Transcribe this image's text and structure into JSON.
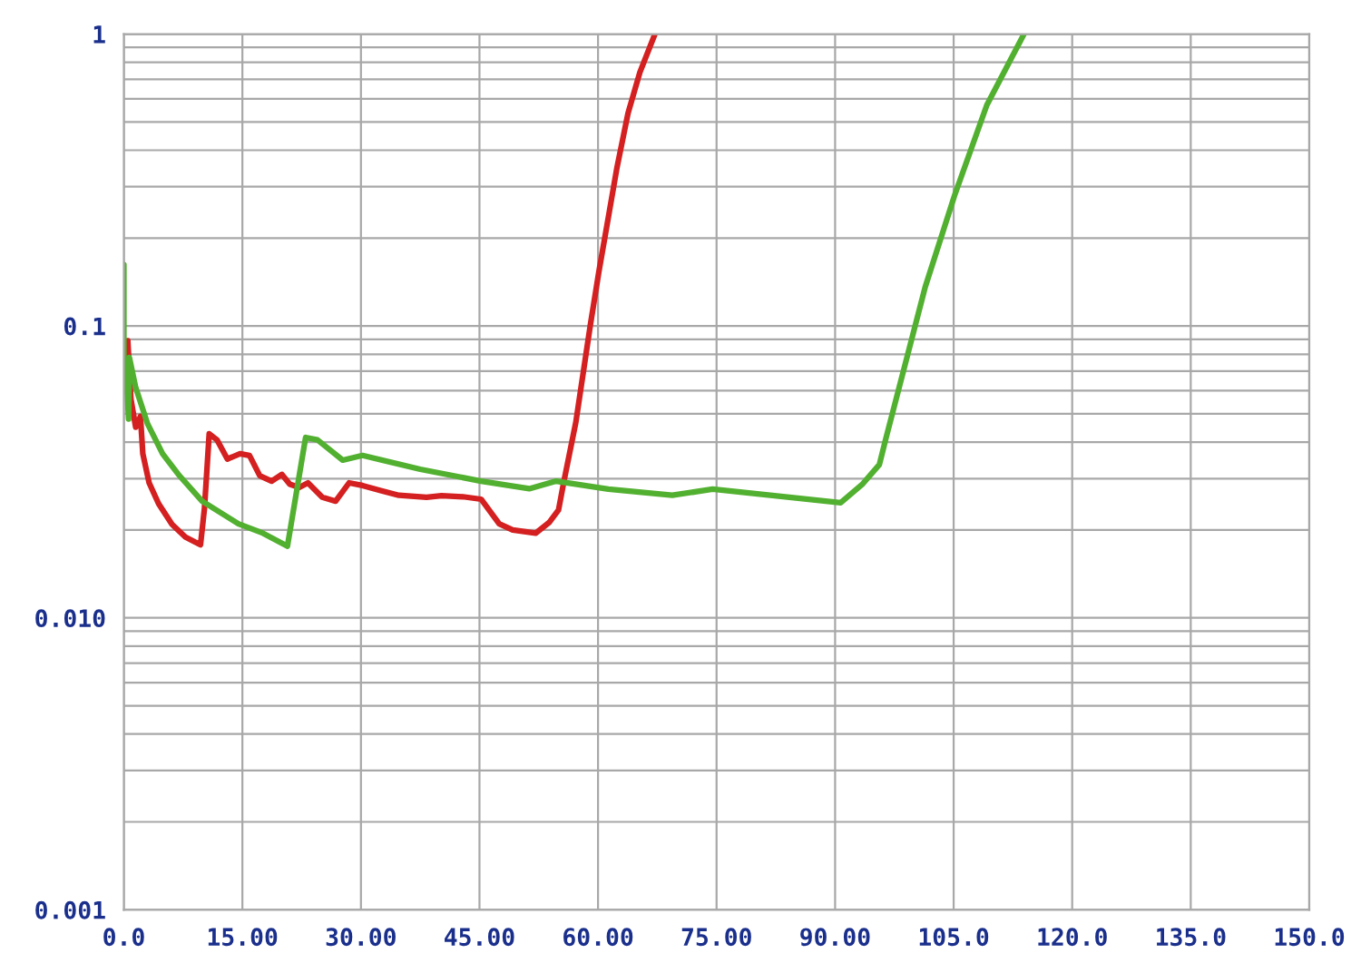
{
  "chart_data": {
    "type": "line",
    "log": "y",
    "grid": true,
    "line_style": "solid",
    "xlim": [
      0,
      150
    ],
    "ylim": [
      0.001,
      1
    ],
    "xticks": [
      {
        "value": 0,
        "label": "0.0"
      },
      {
        "value": 15,
        "label": "15.00"
      },
      {
        "value": 30,
        "label": "30.00"
      },
      {
        "value": 45,
        "label": "45.00"
      },
      {
        "value": 60,
        "label": "60.00"
      },
      {
        "value": 75,
        "label": "75.00"
      },
      {
        "value": 90,
        "label": "90.00"
      },
      {
        "value": 105,
        "label": "105.0"
      },
      {
        "value": 120,
        "label": "120.0"
      },
      {
        "value": 135,
        "label": "135.0"
      },
      {
        "value": 150,
        "label": "150.0"
      }
    ],
    "yticks": [
      {
        "value": 0.001,
        "label": "0.001"
      },
      {
        "value": 0.01,
        "label": "0.010"
      },
      0.1,
      1
    ],
    "series": [
      {
        "color": "#d42020",
        "x": [
          0.5,
          0.9,
          1.5,
          2.1,
          2.4,
          3.2,
          4.4,
          6.1,
          7.8,
          9.7,
          10.2,
          10.8,
          11.8,
          13.1,
          14.7,
          15.9,
          17.2,
          18.7,
          20.0,
          21.0,
          22.2,
          23.3,
          25.1,
          26.8,
          28.5,
          30.2,
          32.5,
          34.8,
          38.3,
          40.2,
          42.9,
          45.2,
          47.5,
          49.2,
          52.1,
          53.8,
          55.0,
          55.7,
          57.2,
          59.0,
          60.1,
          61.3,
          62.4,
          63.8,
          65.3,
          67.2
        ],
        "values": [
          0.089,
          0.056,
          0.045,
          0.049,
          0.0365,
          0.029,
          0.0246,
          0.0209,
          0.0189,
          0.0178,
          0.0237,
          0.0427,
          0.0407,
          0.035,
          0.0365,
          0.036,
          0.0307,
          0.0294,
          0.031,
          0.0287,
          0.028,
          0.029,
          0.0259,
          0.0251,
          0.029,
          0.0284,
          0.0273,
          0.0263,
          0.0259,
          0.0262,
          0.026,
          0.0255,
          0.021,
          0.02,
          0.0195,
          0.0212,
          0.0234,
          0.0295,
          0.0469,
          0.0995,
          0.153,
          0.235,
          0.349,
          0.536,
          0.74,
          1.0
        ]
      },
      {
        "color": "#52b030",
        "x": [
          0.0,
          0.0,
          0.2,
          0.6,
          0.7,
          1.5,
          3.0,
          4.9,
          6.9,
          9.9,
          14.5,
          17.6,
          20.7,
          23.0,
          24.5,
          27.7,
          30.2,
          37.5,
          45.2,
          51.3,
          54.7,
          61.3,
          69.4,
          74.5,
          90.7,
          93.4,
          95.6,
          96.4,
          99.3,
          101.4,
          105.1,
          109.2,
          113.9
        ],
        "values": [
          0.162,
          0.0774,
          0.076,
          0.048,
          0.078,
          0.0615,
          0.0462,
          0.0365,
          0.031,
          0.0251,
          0.021,
          0.0195,
          0.0176,
          0.0415,
          0.0407,
          0.0347,
          0.036,
          0.0323,
          0.0294,
          0.0277,
          0.0294,
          0.0276,
          0.0263,
          0.0276,
          0.0248,
          0.0286,
          0.0335,
          0.0409,
          0.082,
          0.136,
          0.279,
          0.571,
          1.0
        ]
      }
    ]
  }
}
